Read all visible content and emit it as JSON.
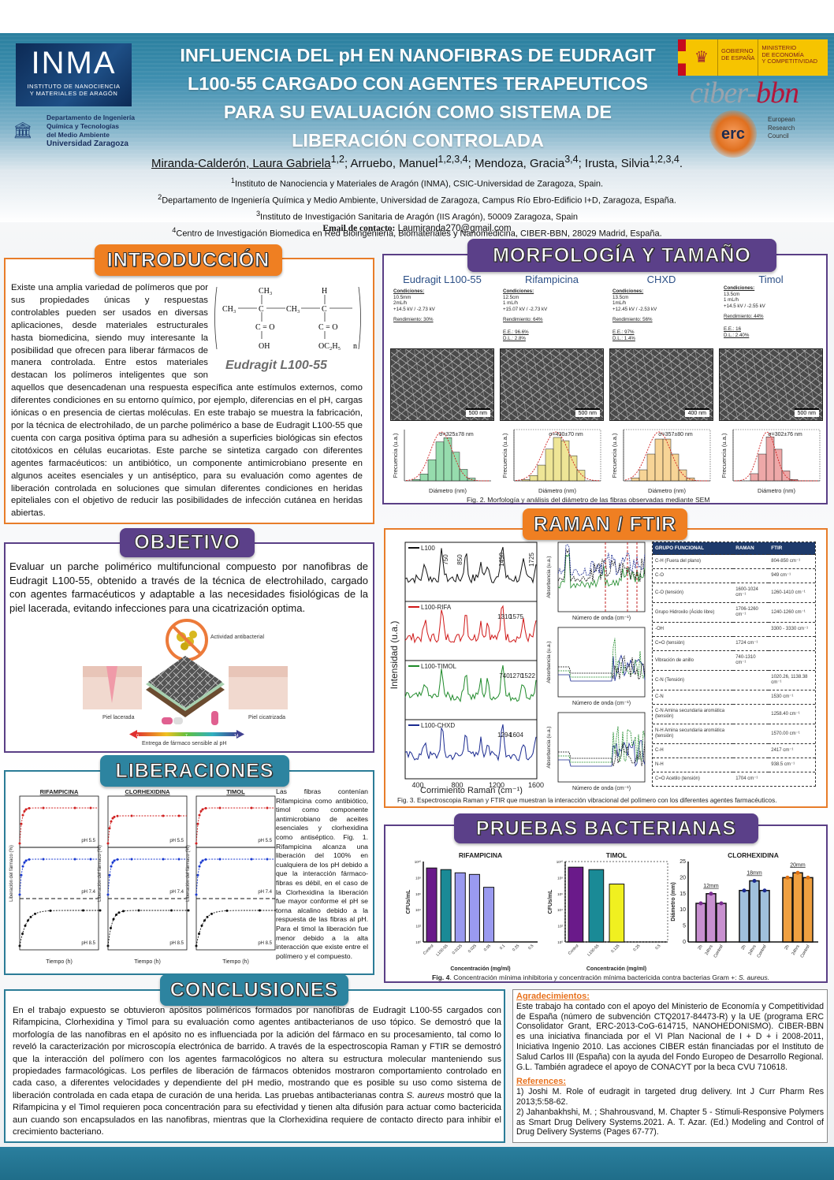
{
  "header": {
    "title_lines": [
      "INFLUENCIA DEL pH EN NANOFIBRAS DE EUDRAGIT",
      "L100-55 CARGADO CON AGENTES TERAPEUTICOS",
      "PARA SU EVALUACIÓN COMO SISTEMA DE",
      "LIBERACIÓN CONTROLADA"
    ],
    "logos": {
      "inma": "INMA",
      "inma_sub1": "INSTITUTO DE NANOCIENCIA",
      "inma_sub2": "Y MATERIALES DE ARAGÓN",
      "unizar": [
        "Departamento de Ingeniería",
        "Química y Tecnologías",
        "del Medio Ambiente",
        "Universidad Zaragoza"
      ],
      "gobierno": [
        "GOBIERNO",
        "DE ESPAÑA"
      ],
      "ministerio": [
        "MINISTERIO",
        "DE ECONOMÍA",
        "Y COMPETITIVIDAD"
      ],
      "ciber_a": "ciber-",
      "ciber_b": "bbn",
      "erc": "erc",
      "erc_text": [
        "European",
        "Research",
        "Council"
      ]
    },
    "authors": {
      "first": "Miranda-Calderón, Laura Gabriela",
      "first_sup": "1,2",
      "rest": [
        {
          "name": "; Arruebo, Manuel",
          "sup": "1,2,3,4"
        },
        {
          "name": "; Mendoza, Gracia",
          "sup": "3,4"
        },
        {
          "name": "; Irusta, Silvia",
          "sup": "1,2,3,4"
        }
      ],
      "end": "."
    },
    "affiliations": [
      {
        "sup": "1",
        "text": "Instituto de Nanociencia y Materiales de Aragón (INMA), CSIC-Universidad de Zaragoza, Spain."
      },
      {
        "sup": "2",
        "text": "Departamento de Ingeniería Química y Medio Ambiente, Universidad de Zaragoza, Campus Río Ebro-Edificio I+D, Zaragoza, España."
      },
      {
        "sup": "3",
        "text": "Instituto de Investigación Sanitaria de Aragón (IIS Aragón), 50009 Zaragoza, Spain"
      },
      {
        "sup": "4",
        "text": "Centro de Investigación Biomedica en Red Bioingeniería, Biomateriales y Nanomedicina, CIBER-BBN, 28029 Madrid, España."
      }
    ],
    "email_label": "Email de contacto:",
    "email": "Laumiranda270@gmail.com"
  },
  "intro": {
    "title": "INTRODUCCIÓN",
    "text": "Existe una amplia variedad de polímeros que por sus propiedades únicas y respuestas controlables pueden ser usados en diversas aplicaciones, desde materiales estructurales hasta biomedicina, siendo muy interesante la posibilidad que ofrecen para liberar fármacos de manera controlada. Entre estos materiales destacan los polímeros inteligentes que son aquellos que desencadenan una respuesta específica ante estímulos externos, como diferentes condiciones en su entorno químico, por ejemplo, diferencias en el pH, cargas iónicas o en presencia de ciertas moléculas. En este trabajo se muestra la fabricación, por la técnica de electrohilado, de un parche polimérico a base de Eudragit L100-55 que cuenta con carga positiva óptima para su adhesión a superficies biológicas sin efectos citotóxicos en células eucariotas. Este parche se sintetiza cargado con diferentes agentes farmacéuticos: un antibiótico, un componente antimicrobiano presente en algunos aceites esenciales y un antiséptico, para su evaluación como agentes de liberación controlada en soluciones que simulan diferentes condiciones en heridas epiteliales con el objetivo de reducir las posibilidades de infección cutánea en heridas abiertas.",
    "structure": {
      "ch3a": "CH₃",
      "ch3b": "CH₃",
      "ch3c": "CH₃",
      "c": "C",
      "h": "H",
      "co1": "C = O",
      "co2": "C = O",
      "oh": "OH",
      "oc2h5": "OC₂H₅",
      "n": "n",
      "name": "Eudragit L100-55"
    }
  },
  "objetivo": {
    "title": "OBJETIVO",
    "text": "Evaluar un parche polimérico multifuncional compuesto por nanofibras de Eudragit L100-55, obtenido a través de la técnica de electrohilado, cargado con agentes farmacéuticos y adaptable a las necesidades fisiológicas de la piel lacerada, evitando infecciones para una cicatrización optima.",
    "figure": {
      "bacteria_label": "Actividad antibacterial",
      "wound_label": "Piel lacerada",
      "healed_label": "Piel cicatrizada",
      "arrow_label": "Entrega de fármaco sensible al pH",
      "ph_mid": "7",
      "ph_left": "0",
      "ph_right": "14"
    }
  },
  "morfologia": {
    "title": "MORFOLOGÍA Y TAMAÑO",
    "samples": [
      {
        "name": "Eudragit L100-55",
        "cond": [
          "Condiciones:",
          "10.5mm",
          "2mL/h",
          "+14.5 kV / -2.73 kV"
        ],
        "rend": "Rendimiento: 30%",
        "extra": [],
        "scale": "500 nm",
        "hist_label": "σ=325±78 nm",
        "color": "#3fbf6a"
      },
      {
        "name": "Rifampicina",
        "cond": [
          "Condiciones:",
          "12.5cm",
          "1 mL/h",
          "+15.07 kV / -2.73 kV"
        ],
        "rend": "Rendimiento: 64%",
        "extra": [
          "E.E.: 96.6%",
          "D.L.: 2.8%"
        ],
        "scale": "500 nm",
        "hist_label": "σ=430±70 nm",
        "color": "#e0d040"
      },
      {
        "name": "CHXD",
        "cond": [
          "Condiciones:",
          "13.5cm",
          "1mL/h",
          "+12.45 kV / -2.53 kV"
        ],
        "rend": "Rendimiento: 56%",
        "extra": [
          "E.E.: 97%",
          "D.L.: 1.4%"
        ],
        "scale": "400 nm",
        "hist_label": "σ=357±80 nm",
        "color": "#f0b040"
      },
      {
        "name": "Timol",
        "cond": [
          "Condiciones:",
          "13.5cm",
          "1 mL/h",
          "+14.5 kV / -2.55 kV"
        ],
        "rend": "Rendimiento: 44%",
        "extra": [
          "E.E.: 16",
          "D.L.: 2.40%"
        ],
        "scale": "500 nm",
        "hist_label": "σ=302±76 nm",
        "color": "#e06060"
      }
    ],
    "hist_ylabel": "Frecuencia (u.a.)",
    "hist_xlabel": "Diámetro (nm)",
    "caption": "Fig. 2. Morfología y análisis del diámetro de las fibras observadas mediante SEM"
  },
  "raman": {
    "title": "RAMAN / FTIR",
    "ylabel": "Intensidad (u.a.)",
    "xlabel": "Corrimiento Raman (cm⁻¹)",
    "xticks": [
      "400",
      "800",
      "1200",
      "1600"
    ],
    "spectra": [
      {
        "name": "L100",
        "color": "#111111",
        "peaks": [
          "750",
          "850",
          "1450",
          "1725"
        ]
      },
      {
        "name": "L100-RIFA",
        "color": "#d01818",
        "peaks": [
          "1310",
          "1575"
        ]
      },
      {
        "name": "L100-TIMOL",
        "color": "#1f8a2a",
        "peaks": [
          "740",
          "1270",
          "1522"
        ]
      },
      {
        "name": "L100-CHXD",
        "color": "#1a2a90",
        "peaks": [
          "1294",
          "1604"
        ]
      }
    ],
    "ftir_ylabel": "Absorbancia (u.a.)",
    "ftir_xlabel": "Número de onda (cm⁻¹)",
    "table": {
      "headers": [
        "GRUPO FUNCIONAL",
        "RAMAN",
        "FTIR"
      ],
      "rows": [
        [
          "C-H (Fuera del plano)",
          "",
          "804-850 cm⁻¹"
        ],
        [
          "C-O",
          "",
          "949 cm⁻¹"
        ],
        [
          "C-O (tensión)",
          "1600-1024 cm⁻¹",
          "1260-1410 cm⁻¹"
        ],
        [
          "Grupo Hidroxilo (Ácido libre)",
          "1706-1260 cm⁻¹",
          "1240-1260 cm⁻¹"
        ],
        [
          "-OH",
          "",
          "3300 - 3330 cm⁻¹"
        ],
        [
          "C=O (tensión)",
          "1724 cm⁻¹",
          ""
        ],
        [
          "Vibración de anillo",
          "740-1310 cm⁻¹",
          ""
        ],
        [
          "C-N (Tensión)",
          "",
          "1020.26, 1138.38 cm⁻¹"
        ],
        [
          "C-N",
          "",
          "1530 cm⁻¹"
        ],
        [
          "C-N Amina secundaria aromática (tensión)",
          "",
          "1258.40 cm⁻¹"
        ],
        [
          "N-H Amina secundaria aromática (tensión)",
          "",
          "1570.00 cm⁻¹"
        ],
        [
          "C-H",
          "",
          "2417 cm⁻¹"
        ],
        [
          "N-H",
          "",
          "938.5 cm⁻¹"
        ],
        [
          "C=O Acetilo (tensión)",
          "1704 cm⁻¹",
          ""
        ]
      ]
    },
    "caption": "Fig. 3. Espectroscopia Raman y FTIR que muestran la interacción vibracional del polímero con los diferentes agentes farmacéuticos."
  },
  "liberaciones": {
    "title": "LIBERACIONES",
    "plots": [
      {
        "title": "RIFAMPICINA",
        "xlabel": "Tiempo (h)"
      },
      {
        "title": "CLORHEXIDINA",
        "xlabel": "Tiempo (h)"
      },
      {
        "title": "TIMOL",
        "xlabel": "Tiempo (h)"
      }
    ],
    "ylabel": "Liberación del fármaco (%)",
    "legend": [
      "pH 5.5",
      "pH 7.4",
      "pH 8.5"
    ],
    "text": "Las fibras contenían Rifampicina como antibiótico, timol como componente antimicrobiano de aceites esenciales y clorhexidina como antiséptico. Fig. 1. Rifampicina alcanza una liberación del 100% en cualquiera de los pH debido a que la interacción fármaco-fibras es débil, en el caso de la Clorhexidina la liberación fue mayor conforme el pH se torna alcalino debido a la respuesta de las fibras al pH. Para el timol la liberación fue menor debido a la alta interacción que existe entre el polímero y el compuesto."
  },
  "bacterias": {
    "title": "PRUEBAS BACTERIANAS",
    "caption_bold": "Fig. 4",
    "caption": ". Concentración mínima inhibitoria y concentración mínima bactericida contra bacterias Gram +: ",
    "caption_italic": "S. aureus."
  },
  "chart_data": [
    {
      "type": "bar",
      "title": "RIFAMPICINA",
      "xlabel": "Concentración (mg/ml)",
      "ylabel": "CFUs/mL",
      "yscale": "log10",
      "ylim": [
        0,
        10
      ],
      "yticks": [
        "10⁰",
        "10²",
        "10⁴",
        "10⁶",
        "10⁸",
        "10¹⁰"
      ],
      "categories": [
        "Control",
        "L100-55",
        "0.0125",
        "0.025",
        "0.05",
        "0.1",
        "0.25",
        "0.5"
      ],
      "values": [
        9.2,
        9.0,
        8.6,
        8.4,
        6.8,
        0,
        0,
        0
      ],
      "colors": [
        "#6a1a8a",
        "#1a8a96",
        "#9a9af0",
        "#9a9af0",
        "#9a9af0",
        "#9a9af0",
        "#9a9af0",
        "#9a9af0"
      ]
    },
    {
      "type": "bar",
      "title": "TIMOL",
      "xlabel": "Concentración (mg/ml)",
      "ylabel": "CFUs/mL",
      "yscale": "log10",
      "ylim": [
        0,
        10
      ],
      "yticks": [
        "10⁰",
        "10²",
        "10⁴",
        "10⁶",
        "10⁸",
        "10¹⁰"
      ],
      "categories": [
        "Control",
        "L100-55",
        "0.125",
        "0.25",
        "0.5"
      ],
      "values": [
        9.3,
        9.0,
        7.2,
        0,
        0
      ],
      "colors": [
        "#6a1a8a",
        "#1a8a96",
        "#f0f020",
        "#f0f020",
        "#f0f020"
      ]
    },
    {
      "type": "bar",
      "title": "CLORHEXIDINA",
      "xlabel": "",
      "ylabel": "Diámetro (mm)",
      "ylim": [
        0,
        25
      ],
      "yticks": [
        "0",
        "5",
        "10",
        "15",
        "20",
        "25"
      ],
      "groups": [
        {
          "label": "12mm",
          "color": "#c890d0",
          "marker": "#7a2a90",
          "categories": [
            "2h",
            "24hrs",
            "Control"
          ],
          "values": [
            12,
            15,
            12
          ]
        },
        {
          "label": "18mm",
          "color": "#a0c0dc",
          "marker": "#1a2a90",
          "categories": [
            "2h",
            "24hrs",
            "Control"
          ],
          "values": [
            16,
            19,
            16
          ]
        },
        {
          "label": "20mm",
          "color": "#f0a040",
          "marker": "#e07010",
          "categories": [
            "2h",
            "24hrs",
            "Control"
          ],
          "values": [
            20,
            21.5,
            20
          ]
        }
      ]
    }
  ],
  "conclusiones": {
    "title": "CONCLUSIONES",
    "text_a": "En el trabajo expuesto se obtuvieron apósitos poliméricos formados por nanofibras de Eudragit L100-55 cargados con Rifampicina, Clorhexidina y Timol para su evaluación como agentes antibacterianos de uso tópico. Se demostró que la morfología de las nanofibras en el apósito no es influenciada por la adición del fármaco en su procesamiento, tal como lo reveló la caracterización por microscopía electrónica de barrido. A través de la espectroscopia Raman y FTIR se demostró que la interacción del polímero con los agentes farmacológicos no altera su estructura molecular manteniendo sus propiedades farmacológicas. Los perfiles de liberación de fármacos obtenidos mostraron comportamiento controlado en cada caso, a diferentes velocidades y dependiente del pH medio, mostrando que es posible su uso como sistema de liberación controlada en cada etapa de curación de una herida. Las pruebas antibacterianas contra ",
    "italic": "S. aureus",
    "text_b": " mostró que la Rifampicina y el Timol requieren poca concentración para su efectividad y tienen alta difusión para actuar como bactericida aun cuando son encapsulados en las nanofibras, mientras que la Clorhexidina requiere de contacto directo para inhibir el crecimiento bacteriano."
  },
  "agradecimientos": {
    "title": "Agradecimientos:",
    "text": "Este trabajo ha contado con el apoyo del Ministerio de Economía y Competitividad de España (número de subvención CTQ2017-84473-R) y la UE (programa ERC Consolidator Grant, ERC-2013-CoG-614715, NANOHEDONISMO). CIBER-BBN es una iniciativa financiada por el VI Plan Nacional de I + D + i 2008-2011, Iniciativa Ingenio 2010. Las acciones CIBER están financiadas por el Instituto de Salud Carlos III (España) con la ayuda del Fondo Europeo de Desarrollo Regional. G.L. También agradece el apoyo de CONACYT por la beca CVU 710618.",
    "ref_title": "References:",
    "refs": [
      "1) Joshi M. Role of eudragit in targeted drug delivery. Int J Curr Pharm Res 2013;5:58-62.",
      "2) Jahanbakhshi, M. ; Shahrousvand, M. Chapter 5 - Stimuli-Responsive Polymers as Smart Drug Delivery Systems.2021. A. T. Azar. (Ed.) Modeling and Control of Drug Delivery Systems (Pages 67-77)."
    ]
  }
}
